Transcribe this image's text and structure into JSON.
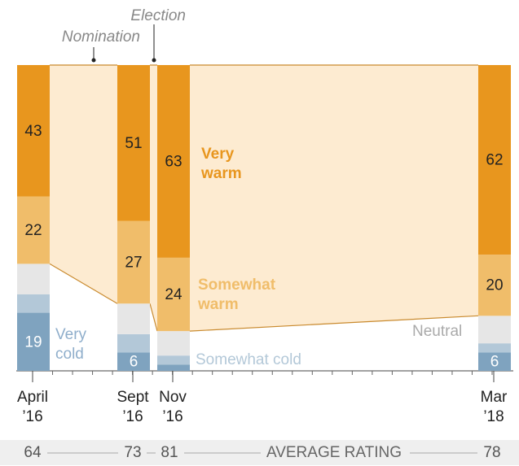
{
  "chart_data": {
    "type": "stacked_bar",
    "categories": [
      "April ’16",
      "Sept ’16",
      "Nov ’16",
      "Mar ’18"
    ],
    "series": [
      {
        "name": "Very cold",
        "color": "#7fa3bf",
        "values": [
          19,
          6,
          2,
          6
        ],
        "value_labels": [
          "19",
          "6",
          null,
          "6"
        ]
      },
      {
        "name": "Somewhat cold",
        "color": "#b3c8d8",
        "values": [
          6,
          6,
          3,
          3
        ]
      },
      {
        "name": "Neutral",
        "color": "#e6e6e6",
        "values": [
          10,
          10,
          8,
          9
        ]
      },
      {
        "name": "Somewhat warm",
        "color": "#f0bd6a",
        "values": [
          22,
          27,
          24,
          20
        ],
        "value_labels": [
          "22",
          "27",
          "24",
          "20"
        ]
      },
      {
        "name": "Very warm",
        "color": "#e8961e",
        "values": [
          43,
          51,
          63,
          62
        ],
        "value_labels": [
          "43",
          "51",
          "63",
          "62"
        ]
      }
    ],
    "ylim": [
      0,
      100
    ],
    "annotations": [
      "Nomination",
      "Election"
    ],
    "average_rating": {
      "label": "AVERAGE RATING",
      "values": [
        64,
        73,
        81,
        78
      ]
    }
  }
}
